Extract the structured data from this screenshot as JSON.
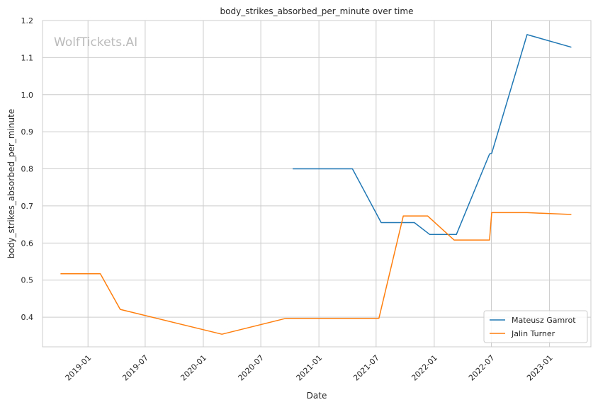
{
  "chart_data": {
    "type": "line",
    "title": "body_strikes_absorbed_per_minute over time",
    "xlabel": "Date",
    "ylabel": "body_strikes_absorbed_per_minute",
    "watermark": "WolfTickets.AI",
    "grid": true,
    "legend_position": "bottom-right",
    "x_ticks": [
      "2019-01",
      "2019-07",
      "2020-01",
      "2020-07",
      "2021-01",
      "2021-07",
      "2022-01",
      "2022-07",
      "2023-01"
    ],
    "y_ticks": [
      "0.4",
      "0.5",
      "0.6",
      "0.7",
      "0.8",
      "0.9",
      "1.0",
      "1.1",
      "1.2"
    ],
    "ylim": [
      0.32,
      1.2
    ],
    "xlim": [
      "2018-08-10",
      "2023-05-12"
    ],
    "series": [
      {
        "name": "Mateusz Gamrot",
        "color": "#1f77b4",
        "points": [
          {
            "x": "2020-10-10",
            "y": 0.8
          },
          {
            "x": "2021-04-17",
            "y": 0.8
          },
          {
            "x": "2021-07-17",
            "y": 0.655
          },
          {
            "x": "2021-10-30",
            "y": 0.655
          },
          {
            "x": "2021-12-18",
            "y": 0.623
          },
          {
            "x": "2022-03-12",
            "y": 0.623
          },
          {
            "x": "2022-06-25",
            "y": 0.84
          },
          {
            "x": "2022-07-02",
            "y": 0.842
          },
          {
            "x": "2022-10-22",
            "y": 1.162
          },
          {
            "x": "2023-03-11",
            "y": 1.128
          }
        ]
      },
      {
        "name": "Jalin Turner",
        "color": "#ff7f0e",
        "points": [
          {
            "x": "2018-10-06",
            "y": 0.517
          },
          {
            "x": "2019-02-09",
            "y": 0.517
          },
          {
            "x": "2019-04-13",
            "y": 0.421
          },
          {
            "x": "2020-02-29",
            "y": 0.354
          },
          {
            "x": "2020-09-19",
            "y": 0.397
          },
          {
            "x": "2021-07-10",
            "y": 0.397
          },
          {
            "x": "2021-09-25",
            "y": 0.673
          },
          {
            "x": "2021-12-11",
            "y": 0.673
          },
          {
            "x": "2022-03-05",
            "y": 0.608
          },
          {
            "x": "2022-06-25",
            "y": 0.608
          },
          {
            "x": "2022-07-02",
            "y": 0.682
          },
          {
            "x": "2022-10-22",
            "y": 0.682
          },
          {
            "x": "2023-03-11",
            "y": 0.677
          }
        ]
      }
    ]
  }
}
